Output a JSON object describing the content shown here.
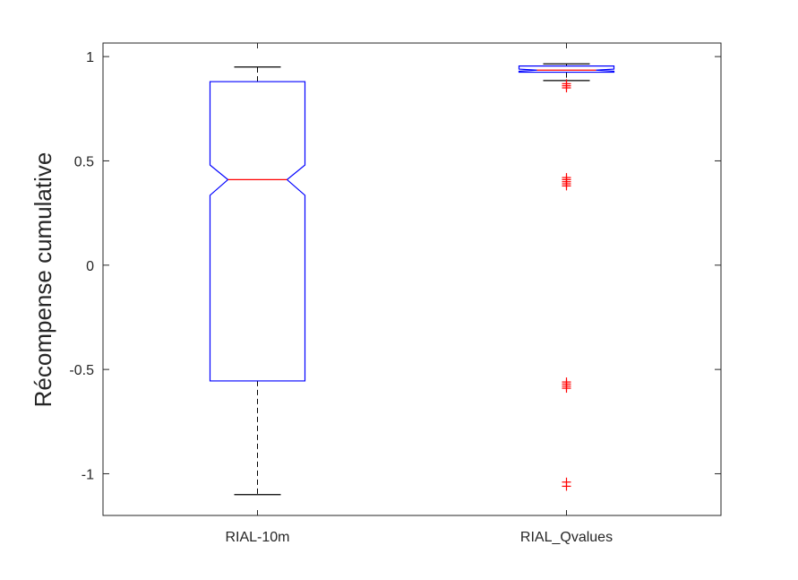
{
  "chart_data": {
    "type": "boxplot",
    "title": "",
    "xlabel": "",
    "ylabel": "Récompense cumulative",
    "ylim": [
      -1.2,
      1.065
    ],
    "yticks": [
      1,
      0.5,
      0,
      -0.5,
      -1
    ],
    "ytick_labels": [
      "1",
      "0.5",
      "0",
      "-0.5",
      "-1"
    ],
    "notched": true,
    "grid": false,
    "categories": [
      "RIAL-10m",
      "RIAL_Qvalues"
    ],
    "boxes": [
      {
        "name": "RIAL-10m",
        "whisker_low": -1.1,
        "q1": -0.555,
        "median": 0.41,
        "q3": 0.88,
        "whisker_high": 0.95,
        "notch_low": 0.335,
        "notch_high": 0.48,
        "outliers": []
      },
      {
        "name": "RIAL_Qvalues",
        "whisker_low": 0.885,
        "q1": 0.925,
        "median": 0.935,
        "q3": 0.955,
        "whisker_high": 0.965,
        "notch_low": 0.93,
        "notch_high": 0.94,
        "outliers": [
          0.87,
          0.86,
          0.85,
          0.42,
          0.41,
          0.4,
          0.39,
          0.38,
          -0.56,
          -0.57,
          -0.58,
          -0.59,
          -1.04,
          -1.06
        ]
      }
    ],
    "colors": {
      "box": "#0000ff",
      "median": "#ff0000",
      "whisker": "#000000",
      "outlier": "#ff0000",
      "axes": "#262626"
    }
  }
}
